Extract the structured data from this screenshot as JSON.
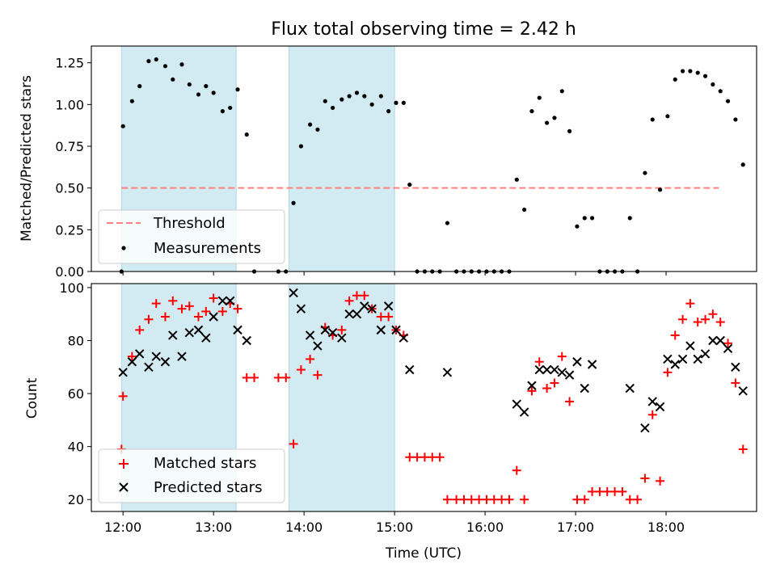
{
  "chart_data": [
    {
      "type": "scatter",
      "title": "Flux total observing time = 2.42 h",
      "ylabel": "Matched/Predicted stars",
      "xlabel": "",
      "xlim": [
        "11:39",
        "19:00"
      ],
      "ylim": [
        0,
        1.35
      ],
      "yticks": [
        "0.00",
        "0.25",
        "0.50",
        "0.75",
        "1.00",
        "1.25"
      ],
      "shaded_intervals": [
        [
          "11:59",
          "13:15"
        ],
        [
          "13:50",
          "15:00"
        ]
      ],
      "shade_color": "#add8e6",
      "threshold": {
        "label": "Threshold",
        "value": 0.5,
        "x_range": [
          "11:59",
          "18:35"
        ],
        "color": "#ff8080"
      },
      "series": [
        {
          "name": "Measurements",
          "marker": "dot",
          "color": "#000000",
          "points": [
            [
              "11:59",
              0.0
            ],
            [
              "12:00",
              0.87
            ],
            [
              "12:06",
              1.02
            ],
            [
              "12:11",
              1.11
            ],
            [
              "12:17",
              1.26
            ],
            [
              "12:22",
              1.27
            ],
            [
              "12:28",
              1.23
            ],
            [
              "12:33",
              1.15
            ],
            [
              "12:39",
              1.24
            ],
            [
              "12:44",
              1.12
            ],
            [
              "12:50",
              1.06
            ],
            [
              "12:55",
              1.11
            ],
            [
              "13:00",
              1.07
            ],
            [
              "13:06",
              0.96
            ],
            [
              "13:11",
              0.98
            ],
            [
              "13:16",
              1.09
            ],
            [
              "13:22",
              0.82
            ],
            [
              "13:27",
              0.0
            ],
            [
              "13:43",
              0.0
            ],
            [
              "13:48",
              0.0
            ],
            [
              "13:53",
              0.41
            ],
            [
              "13:58",
              0.75
            ],
            [
              "14:04",
              0.88
            ],
            [
              "14:09",
              0.85
            ],
            [
              "14:14",
              1.02
            ],
            [
              "14:19",
              0.98
            ],
            [
              "14:25",
              1.03
            ],
            [
              "14:30",
              1.05
            ],
            [
              "14:35",
              1.07
            ],
            [
              "14:40",
              1.05
            ],
            [
              "14:45",
              1.0
            ],
            [
              "14:51",
              1.05
            ],
            [
              "14:56",
              0.96
            ],
            [
              "15:01",
              1.01
            ],
            [
              "15:06",
              1.01
            ],
            [
              "15:10",
              0.52
            ],
            [
              "15:15",
              0.0
            ],
            [
              "15:20",
              0.0
            ],
            [
              "15:25",
              0.0
            ],
            [
              "15:30",
              0.0
            ],
            [
              "15:35",
              0.29
            ],
            [
              "15:41",
              0.0
            ],
            [
              "15:46",
              0.0
            ],
            [
              "15:51",
              0.0
            ],
            [
              "15:56",
              0.0
            ],
            [
              "16:01",
              0.0
            ],
            [
              "16:06",
              0.0
            ],
            [
              "16:11",
              0.0
            ],
            [
              "16:16",
              0.0
            ],
            [
              "16:21",
              0.55
            ],
            [
              "16:26",
              0.37
            ],
            [
              "16:31",
              0.96
            ],
            [
              "16:36",
              1.04
            ],
            [
              "16:41",
              0.89
            ],
            [
              "16:46",
              0.92
            ],
            [
              "16:51",
              1.08
            ],
            [
              "16:56",
              0.84
            ],
            [
              "17:01",
              0.27
            ],
            [
              "17:06",
              0.32
            ],
            [
              "17:11",
              0.32
            ],
            [
              "17:16",
              0.0
            ],
            [
              "17:21",
              0.0
            ],
            [
              "17:26",
              0.0
            ],
            [
              "17:31",
              0.0
            ],
            [
              "17:36",
              0.32
            ],
            [
              "17:41",
              0.0
            ],
            [
              "17:46",
              0.59
            ],
            [
              "17:51",
              0.91
            ],
            [
              "17:56",
              0.49
            ],
            [
              "18:01",
              0.93
            ],
            [
              "18:06",
              1.15
            ],
            [
              "18:11",
              1.2
            ],
            [
              "18:16",
              1.2
            ],
            [
              "18:21",
              1.19
            ],
            [
              "18:26",
              1.17
            ],
            [
              "18:31",
              1.12
            ],
            [
              "18:36",
              1.08
            ],
            [
              "18:41",
              1.02
            ],
            [
              "18:46",
              0.91
            ],
            [
              "18:51",
              0.64
            ]
          ]
        }
      ],
      "legend": {
        "position": "lower-left",
        "entries": [
          "Threshold",
          "Measurements"
        ]
      }
    },
    {
      "type": "scatter",
      "title": "",
      "ylabel": "Count",
      "xlabel": "Time (UTC)",
      "xlim": [
        "11:39",
        "19:00"
      ],
      "ylim": [
        15.5,
        101.5
      ],
      "xticks": [
        "12:00",
        "13:00",
        "14:00",
        "15:00",
        "16:00",
        "17:00",
        "18:00"
      ],
      "yticks": [
        "20",
        "40",
        "60",
        "80",
        "100"
      ],
      "shaded_intervals": [
        [
          "11:59",
          "13:15"
        ],
        [
          "13:50",
          "15:00"
        ]
      ],
      "shade_color": "#add8e6",
      "series": [
        {
          "name": "Matched stars",
          "marker": "plus",
          "color": "#ff0000",
          "points": [
            [
              "11:59",
              39
            ],
            [
              "12:00",
              59
            ],
            [
              "12:06",
              74
            ],
            [
              "12:11",
              84
            ],
            [
              "12:17",
              88
            ],
            [
              "12:22",
              94
            ],
            [
              "12:28",
              89
            ],
            [
              "12:33",
              95
            ],
            [
              "12:39",
              92
            ],
            [
              "12:44",
              93
            ],
            [
              "12:50",
              89
            ],
            [
              "12:55",
              91
            ],
            [
              "13:00",
              96
            ],
            [
              "13:06",
              91
            ],
            [
              "13:11",
              94
            ],
            [
              "13:16",
              92
            ],
            [
              "13:22",
              66
            ],
            [
              "13:27",
              66
            ],
            [
              "13:43",
              66
            ],
            [
              "13:48",
              66
            ],
            [
              "13:53",
              41
            ],
            [
              "13:58",
              69
            ],
            [
              "14:04",
              73
            ],
            [
              "14:09",
              67
            ],
            [
              "14:14",
              85
            ],
            [
              "14:19",
              82
            ],
            [
              "14:25",
              84
            ],
            [
              "14:30",
              95
            ],
            [
              "14:35",
              97
            ],
            [
              "14:40",
              97
            ],
            [
              "14:45",
              92
            ],
            [
              "14:51",
              89
            ],
            [
              "14:56",
              89
            ],
            [
              "15:01",
              84
            ],
            [
              "15:06",
              82
            ],
            [
              "15:10",
              36
            ],
            [
              "15:15",
              36
            ],
            [
              "15:20",
              36
            ],
            [
              "15:25",
              36
            ],
            [
              "15:30",
              36
            ],
            [
              "15:35",
              20
            ],
            [
              "15:41",
              20
            ],
            [
              "15:46",
              20
            ],
            [
              "15:51",
              20
            ],
            [
              "15:56",
              20
            ],
            [
              "16:01",
              20
            ],
            [
              "16:06",
              20
            ],
            [
              "16:11",
              20
            ],
            [
              "16:16",
              20
            ],
            [
              "16:21",
              31
            ],
            [
              "16:26",
              20
            ],
            [
              "16:31",
              61
            ],
            [
              "16:36",
              72
            ],
            [
              "16:41",
              62
            ],
            [
              "16:46",
              64
            ],
            [
              "16:51",
              74
            ],
            [
              "16:56",
              57
            ],
            [
              "17:01",
              20
            ],
            [
              "17:06",
              20
            ],
            [
              "17:11",
              23
            ],
            [
              "17:16",
              23
            ],
            [
              "17:21",
              23
            ],
            [
              "17:26",
              23
            ],
            [
              "17:31",
              23
            ],
            [
              "17:36",
              20
            ],
            [
              "17:41",
              20
            ],
            [
              "17:46",
              28
            ],
            [
              "17:51",
              52
            ],
            [
              "17:56",
              27
            ],
            [
              "18:01",
              68
            ],
            [
              "18:06",
              82
            ],
            [
              "18:11",
              88
            ],
            [
              "18:16",
              94
            ],
            [
              "18:21",
              87
            ],
            [
              "18:26",
              88
            ],
            [
              "18:31",
              90
            ],
            [
              "18:36",
              87
            ],
            [
              "18:41",
              79
            ],
            [
              "18:46",
              64
            ],
            [
              "18:51",
              39
            ]
          ]
        },
        {
          "name": "Predicted stars",
          "marker": "x",
          "color": "#000000",
          "points": [
            [
              "12:00",
              68
            ],
            [
              "12:06",
              72
            ],
            [
              "12:11",
              75
            ],
            [
              "12:17",
              70
            ],
            [
              "12:22",
              74
            ],
            [
              "12:28",
              72
            ],
            [
              "12:33",
              82
            ],
            [
              "12:39",
              74
            ],
            [
              "12:44",
              83
            ],
            [
              "12:50",
              84
            ],
            [
              "12:55",
              81
            ],
            [
              "13:00",
              89
            ],
            [
              "13:06",
              95
            ],
            [
              "13:11",
              95
            ],
            [
              "13:16",
              84
            ],
            [
              "13:22",
              80
            ],
            [
              "13:53",
              98
            ],
            [
              "13:58",
              92
            ],
            [
              "14:04",
              82
            ],
            [
              "14:09",
              78
            ],
            [
              "14:14",
              84
            ],
            [
              "14:19",
              83
            ],
            [
              "14:25",
              81
            ],
            [
              "14:30",
              90
            ],
            [
              "14:35",
              90
            ],
            [
              "14:40",
              93
            ],
            [
              "14:45",
              92
            ],
            [
              "14:51",
              84
            ],
            [
              "14:56",
              93
            ],
            [
              "15:01",
              84
            ],
            [
              "15:06",
              81
            ],
            [
              "15:10",
              69
            ],
            [
              "15:35",
              68
            ],
            [
              "16:21",
              56
            ],
            [
              "16:26",
              53
            ],
            [
              "16:31",
              63
            ],
            [
              "16:36",
              69
            ],
            [
              "16:41",
              69
            ],
            [
              "16:46",
              69
            ],
            [
              "16:51",
              68
            ],
            [
              "16:56",
              67
            ],
            [
              "17:01",
              72
            ],
            [
              "17:06",
              62
            ],
            [
              "17:11",
              71
            ],
            [
              "17:36",
              62
            ],
            [
              "17:46",
              47
            ],
            [
              "17:51",
              57
            ],
            [
              "17:56",
              55
            ],
            [
              "18:01",
              73
            ],
            [
              "18:06",
              71
            ],
            [
              "18:11",
              73
            ],
            [
              "18:16",
              78
            ],
            [
              "18:21",
              73
            ],
            [
              "18:26",
              75
            ],
            [
              "18:31",
              80
            ],
            [
              "18:36",
              80
            ],
            [
              "18:41",
              77
            ],
            [
              "18:46",
              70
            ],
            [
              "18:51",
              61
            ]
          ]
        }
      ],
      "legend": {
        "position": "lower-left",
        "entries": [
          "Matched stars",
          "Predicted stars"
        ]
      }
    }
  ]
}
